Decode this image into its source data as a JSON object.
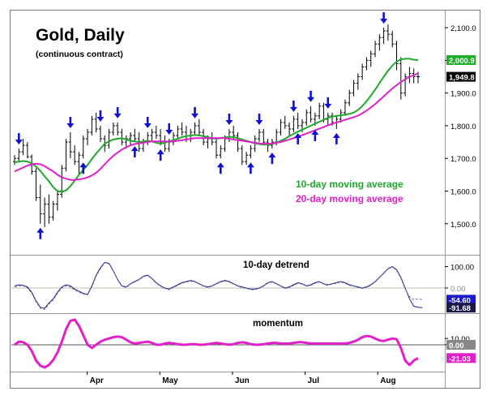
{
  "chart_data": [
    {
      "type": "line",
      "panel": "price",
      "title": "Gold, Daily",
      "subtitle": "(continuous contract)",
      "x_axis_labels": [
        "Apr",
        "May",
        "Jun",
        "Jul",
        "Aug"
      ],
      "y_ticks": [
        1500,
        1600,
        1700,
        1800,
        1900,
        2000,
        2100
      ],
      "y_tick_labels": [
        "1,500.0",
        "1,600.0",
        "1,700.0",
        "1,800.0",
        "1,900.0",
        "2,000.0",
        "2,100.0"
      ],
      "ylim": [
        1410,
        2150
      ],
      "grid": false,
      "last_value_labels": [
        {
          "value": 2000.9,
          "text": "2,000.9",
          "color": "#1fae2a"
        },
        {
          "value": 1949.8,
          "text": "1,949.8",
          "color": "#000000"
        }
      ],
      "series": [
        {
          "name": "10-day moving average",
          "color": "#20a82e",
          "values": [
            1688,
            1690,
            1692,
            1690,
            1685,
            1675,
            1662,
            1645,
            1630,
            1612,
            1600,
            1598,
            1602,
            1615,
            1632,
            1650,
            1665,
            1680,
            1698,
            1715,
            1730,
            1745,
            1752,
            1758,
            1760,
            1762,
            1758,
            1754,
            1752,
            1750,
            1752,
            1754,
            1752,
            1748,
            1745,
            1748,
            1752,
            1756,
            1760,
            1765,
            1768,
            1770,
            1772,
            1770,
            1768,
            1765,
            1762,
            1760,
            1762,
            1764,
            1766,
            1765,
            1762,
            1758,
            1754,
            1750,
            1746,
            1744,
            1742,
            1742,
            1744,
            1748,
            1754,
            1760,
            1768,
            1775,
            1782,
            1788,
            1794,
            1800,
            1806,
            1812,
            1818,
            1824,
            1828,
            1830,
            1832,
            1834,
            1836,
            1840,
            1848,
            1860,
            1875,
            1892,
            1910,
            1930,
            1950,
            1968,
            1984,
            1996,
            2003,
            2005,
            2005,
            2002,
            2000.9
          ]
        },
        {
          "name": "20-day moving average",
          "color": "#e020c8",
          "values": [
            1660,
            1666,
            1672,
            1678,
            1682,
            1684,
            1682,
            1676,
            1668,
            1660,
            1650,
            1642,
            1638,
            1634,
            1634,
            1636,
            1638,
            1642,
            1648,
            1656,
            1668,
            1682,
            1696,
            1708,
            1718,
            1727,
            1734,
            1740,
            1744,
            1746,
            1748,
            1750,
            1752,
            1752,
            1752,
            1752,
            1752,
            1752,
            1754,
            1756,
            1758,
            1760,
            1762,
            1762,
            1762,
            1762,
            1762,
            1762,
            1762,
            1762,
            1760,
            1758,
            1756,
            1754,
            1752,
            1750,
            1748,
            1746,
            1745,
            1745,
            1746,
            1748,
            1750,
            1754,
            1758,
            1762,
            1766,
            1771,
            1776,
            1781,
            1786,
            1791,
            1796,
            1801,
            1806,
            1810,
            1814,
            1818,
            1822,
            1826,
            1831,
            1838,
            1846,
            1856,
            1866,
            1878,
            1890,
            1902,
            1914,
            1924,
            1934,
            1942,
            1949.8,
            1955,
            1960
          ]
        }
      ],
      "ohlc": [
        [
          1690,
          1710,
          1680,
          1700
        ],
        [
          1700,
          1730,
          1690,
          1720
        ],
        [
          1720,
          1760,
          1710,
          1740
        ],
        [
          1740,
          1750,
          1700,
          1705
        ],
        [
          1705,
          1712,
          1650,
          1660
        ],
        [
          1660,
          1670,
          1570,
          1580
        ],
        [
          1580,
          1620,
          1500,
          1530
        ],
        [
          1530,
          1580,
          1490,
          1560
        ],
        [
          1560,
          1590,
          1500,
          1520
        ],
        [
          1520,
          1570,
          1510,
          1560
        ],
        [
          1560,
          1600,
          1540,
          1590
        ],
        [
          1590,
          1680,
          1580,
          1670
        ],
        [
          1670,
          1760,
          1660,
          1750
        ],
        [
          1750,
          1780,
          1700,
          1720
        ],
        [
          1720,
          1740,
          1680,
          1690
        ],
        [
          1690,
          1720,
          1650,
          1710
        ],
        [
          1710,
          1770,
          1700,
          1760
        ],
        [
          1760,
          1790,
          1740,
          1780
        ],
        [
          1780,
          1830,
          1770,
          1820
        ],
        [
          1820,
          1840,
          1780,
          1790
        ],
        [
          1790,
          1800,
          1750,
          1760
        ],
        [
          1760,
          1770,
          1720,
          1740
        ],
        [
          1740,
          1790,
          1730,
          1780
        ],
        [
          1780,
          1810,
          1770,
          1800
        ],
        [
          1800,
          1810,
          1770,
          1780
        ],
        [
          1780,
          1790,
          1740,
          1750
        ],
        [
          1750,
          1770,
          1730,
          1760
        ],
        [
          1760,
          1780,
          1740,
          1770
        ],
        [
          1770,
          1790,
          1750,
          1760
        ],
        [
          1760,
          1780,
          1720,
          1730
        ],
        [
          1730,
          1760,
          1720,
          1750
        ],
        [
          1750,
          1780,
          1740,
          1770
        ],
        [
          1770,
          1790,
          1750,
          1780
        ],
        [
          1780,
          1800,
          1760,
          1770
        ],
        [
          1770,
          1790,
          1740,
          1750
        ],
        [
          1750,
          1770,
          1720,
          1730
        ],
        [
          1730,
          1760,
          1720,
          1750
        ],
        [
          1750,
          1780,
          1740,
          1770
        ],
        [
          1770,
          1800,
          1760,
          1790
        ],
        [
          1790,
          1810,
          1770,
          1780
        ],
        [
          1780,
          1800,
          1750,
          1760
        ],
        [
          1760,
          1790,
          1750,
          1780
        ],
        [
          1780,
          1810,
          1770,
          1800
        ],
        [
          1800,
          1820,
          1770,
          1780
        ],
        [
          1780,
          1790,
          1740,
          1750
        ],
        [
          1750,
          1770,
          1730,
          1760
        ],
        [
          1760,
          1780,
          1740,
          1750
        ],
        [
          1750,
          1760,
          1700,
          1710
        ],
        [
          1710,
          1740,
          1700,
          1730
        ],
        [
          1730,
          1770,
          1720,
          1760
        ],
        [
          1760,
          1790,
          1750,
          1780
        ],
        [
          1780,
          1800,
          1760,
          1770
        ],
        [
          1770,
          1780,
          1720,
          1730
        ],
        [
          1730,
          1740,
          1680,
          1690
        ],
        [
          1690,
          1720,
          1680,
          1710
        ],
        [
          1710,
          1740,
          1700,
          1730
        ],
        [
          1730,
          1770,
          1720,
          1760
        ],
        [
          1760,
          1790,
          1750,
          1780
        ],
        [
          1780,
          1790,
          1740,
          1750
        ],
        [
          1750,
          1760,
          1720,
          1740
        ],
        [
          1740,
          1760,
          1730,
          1750
        ],
        [
          1750,
          1790,
          1740,
          1780
        ],
        [
          1780,
          1820,
          1770,
          1810
        ],
        [
          1810,
          1830,
          1790,
          1800
        ],
        [
          1800,
          1810,
          1770,
          1790
        ],
        [
          1790,
          1830,
          1780,
          1820
        ],
        [
          1820,
          1840,
          1790,
          1800
        ],
        [
          1800,
          1820,
          1780,
          1810
        ],
        [
          1810,
          1850,
          1800,
          1840
        ],
        [
          1840,
          1860,
          1810,
          1820
        ],
        [
          1820,
          1840,
          1800,
          1830
        ],
        [
          1830,
          1870,
          1820,
          1860
        ],
        [
          1860,
          1870,
          1810,
          1820
        ],
        [
          1820,
          1840,
          1800,
          1830
        ],
        [
          1830,
          1840,
          1800,
          1810
        ],
        [
          1810,
          1830,
          1790,
          1820
        ],
        [
          1820,
          1850,
          1810,
          1840
        ],
        [
          1840,
          1880,
          1830,
          1870
        ],
        [
          1870,
          1910,
          1860,
          1900
        ],
        [
          1900,
          1940,
          1890,
          1930
        ],
        [
          1930,
          1960,
          1910,
          1950
        ],
        [
          1950,
          1990,
          1940,
          1980
        ],
        [
          1980,
          2010,
          1970,
          2000
        ],
        [
          2000,
          2030,
          1980,
          2020
        ],
        [
          2020,
          2060,
          2010,
          2050
        ],
        [
          2050,
          2080,
          2030,
          2070
        ],
        [
          2070,
          2100,
          2050,
          2090
        ],
        [
          2090,
          2110,
          2060,
          2080
        ],
        [
          2080,
          2090,
          2040,
          2050
        ],
        [
          2050,
          2060,
          1970,
          1990
        ],
        [
          1990,
          2010,
          1880,
          1900
        ],
        [
          1900,
          1960,
          1890,
          1950
        ],
        [
          1950,
          1980,
          1930,
          1960
        ],
        [
          1960,
          1975,
          1930,
          1950
        ],
        [
          1950,
          1965,
          1930,
          1949.8
        ]
      ]
    },
    {
      "type": "line",
      "panel": "detrend",
      "title": "10-day detrend",
      "ylim": [
        -110,
        140
      ],
      "zero_line": 0,
      "right_axis_labels": [
        {
          "value": 100,
          "text": "100.00"
        },
        {
          "value": 0,
          "text": "0.00"
        }
      ],
      "last_value_labels": [
        {
          "value": -54.6,
          "text": "-54.60",
          "color": "#1a1acc"
        },
        {
          "value": -91.68,
          "text": "-91.68",
          "color": "#1a1a4a"
        }
      ],
      "series": [
        {
          "color": "#20208a",
          "values": [
            10,
            15,
            12,
            5,
            -20,
            -60,
            -90,
            -95,
            -70,
            -50,
            -20,
            5,
            15,
            10,
            -5,
            -15,
            -25,
            -30,
            10,
            60,
            95,
            120,
            115,
            80,
            40,
            10,
            5,
            20,
            30,
            40,
            55,
            60,
            45,
            25,
            10,
            0,
            -5,
            5,
            15,
            25,
            30,
            35,
            30,
            20,
            10,
            5,
            10,
            20,
            30,
            35,
            30,
            20,
            10,
            5,
            0,
            -5,
            -5,
            0,
            10,
            25,
            30,
            20,
            10,
            0,
            5,
            15,
            25,
            20,
            10,
            15,
            25,
            30,
            20,
            15,
            20,
            25,
            30,
            25,
            15,
            10,
            5,
            0,
            5,
            15,
            30,
            50,
            70,
            90,
            100,
            85,
            50,
            0,
            -50,
            -85,
            -90,
            -91.68
          ]
        },
        {
          "color": "#7070a8",
          "values": [
            5,
            10,
            10,
            0,
            -25,
            -65,
            -95,
            -100,
            -75,
            -55,
            -25,
            0,
            10,
            5,
            -10,
            -20,
            -28,
            -32,
            5,
            55,
            90,
            118,
            112,
            78,
            38,
            8,
            2,
            18,
            28,
            38,
            52,
            58,
            43,
            22,
            8,
            -2,
            -8,
            2,
            12,
            22,
            28,
            32,
            28,
            18,
            8,
            2,
            8,
            18,
            28,
            32,
            28,
            18,
            8,
            2,
            -2,
            -8,
            -8,
            -2,
            8,
            22,
            28,
            18,
            8,
            -2,
            2,
            12,
            22,
            18,
            8,
            12,
            22,
            28,
            18,
            12,
            18,
            22,
            28,
            22,
            12,
            8,
            2,
            -2,
            2,
            12,
            28,
            48,
            68,
            88,
            98,
            82,
            45,
            -5,
            -40,
            -54.6,
            -50,
            -54.6
          ]
        }
      ]
    },
    {
      "type": "line",
      "panel": "momentum",
      "title": "momentum",
      "ylim": [
        -40,
        45
      ],
      "zero_line": 0,
      "right_axis_labels": [
        {
          "value": 10,
          "text": "10.00"
        },
        {
          "value": 0,
          "text": "0.00"
        }
      ],
      "last_value_labels": [
        {
          "value": -21.03,
          "text": "-21.03",
          "color": "#e020c8"
        }
      ],
      "series": [
        {
          "color": "#e020c8",
          "values": [
            0,
            5,
            4,
            0,
            -10,
            -25,
            -33,
            -36,
            -32,
            -24,
            -12,
            5,
            25,
            38,
            40,
            30,
            15,
            0,
            -5,
            0,
            5,
            8,
            10,
            12,
            13,
            12,
            8,
            4,
            2,
            3,
            4,
            5,
            3,
            0,
            0,
            2,
            3,
            2,
            1,
            0,
            0,
            1,
            1,
            0,
            0,
            1,
            2,
            3,
            2,
            1,
            0,
            1,
            3,
            4,
            3,
            1,
            0,
            0,
            1,
            2,
            3,
            3,
            2,
            2,
            2,
            3,
            4,
            4,
            3,
            2,
            2,
            2,
            2,
            2,
            2,
            2,
            2,
            2,
            3,
            5,
            8,
            12,
            14,
            13,
            10,
            7,
            6,
            8,
            10,
            9,
            -5,
            -25,
            -32,
            -25,
            -21.03
          ]
        }
      ]
    }
  ],
  "annotations": {
    "ma10_label": "10-day moving average",
    "ma20_label": "20-day moving average",
    "ma10_color": "#20a82e",
    "ma20_color": "#e020c8",
    "arrow_color": "#1010d0",
    "down_arrow_bars": [
      1,
      13,
      20,
      24,
      31,
      36,
      42,
      50,
      57,
      65,
      69,
      73,
      86
    ],
    "up_arrow_bars": [
      6,
      16,
      28,
      34,
      48,
      55,
      60,
      66,
      70,
      75
    ]
  }
}
